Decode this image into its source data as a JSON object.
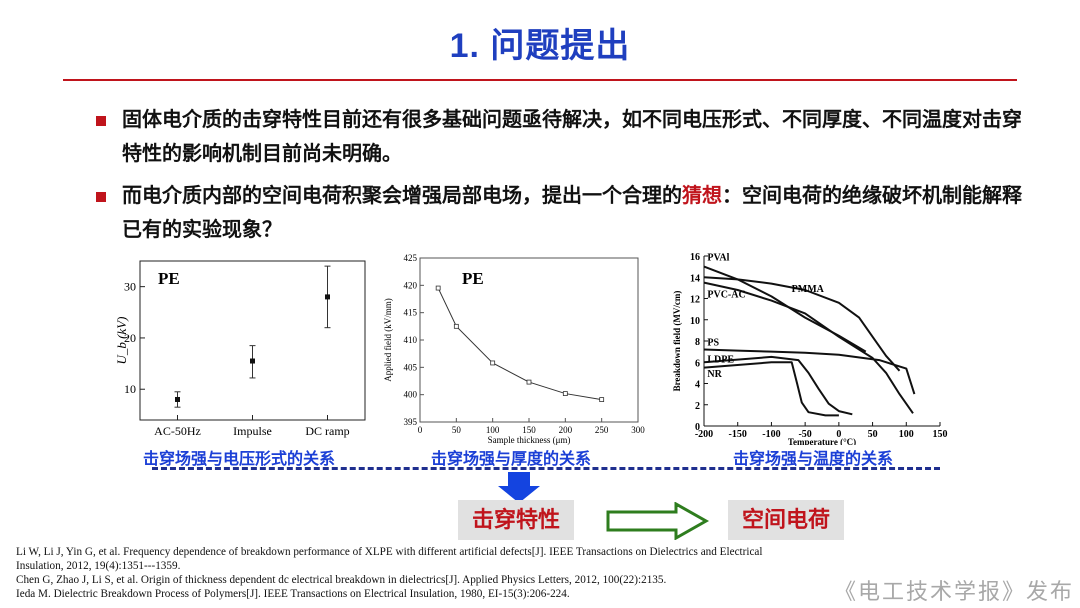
{
  "title": "1. 问题提出",
  "bullets": [
    {
      "text": "固体电介质的击穿特性目前还有很多基础问题亟待解决，如不同电压形式、不同厚度、不同温度对击穿特性的影响机制目前尚未明确。"
    },
    {
      "before": "而电介质内部的空间电荷积聚会增强局部电场，提出一个合理的",
      "highlight": "猜想",
      "after": "：空间电荷的绝缘破坏机制能解释已有的实验现象？"
    }
  ],
  "charts": {
    "voltage": {
      "caption": "击穿场强与电压形式的关系"
    },
    "thickness": {
      "caption": "击穿场强与厚度的关系"
    },
    "temperature": {
      "caption": "击穿场强与温度的关系"
    }
  },
  "flow": {
    "left_box": "击穿特性",
    "right_box": "空间电荷",
    "arrow_down_color": "#1444e0",
    "arrow_right_color": "#2e7d1e"
  },
  "references": [
    "Li W, Li J, Yin G, et al. Frequency dependence of breakdown performance of XLPE with different artificial defects[J]. IEEE Transactions on Dielectrics and Electrical",
    "Insulation, 2012, 19(4):1351---1359.",
    "Chen G, Zhao J, Li S, et al. Origin of thickness dependent dc electrical breakdown in dielectrics[J]. Applied Physics Letters, 2012, 100(22):2135.",
    "Ieda M. Dielectric Breakdown Process of Polymers[J]. IEEE Transactions on Electrical Insulation, 1980, EI-15(3):206-224."
  ],
  "watermark": "《电工技术学报》发布",
  "colors": {
    "title": "#1f3fbf",
    "accent_red": "#c0141c",
    "caption_blue": "#1b3fd6"
  },
  "chart_data": [
    {
      "type": "scatter",
      "title": "PE",
      "ylabel": "U_b (kV)",
      "categories": [
        "AC-50Hz",
        "Impulse",
        "DC ramp"
      ],
      "values": [
        8,
        15.5,
        28
      ],
      "error_low": [
        6.5,
        12.2,
        22
      ],
      "error_high": [
        9.5,
        18.5,
        34
      ],
      "ylim": [
        4,
        35
      ],
      "yticks": [
        10,
        20,
        30
      ]
    },
    {
      "type": "line",
      "title": "PE",
      "xlabel": "Sample thickness (μm)",
      "ylabel": "Applied field (kV/mm)",
      "x": [
        25,
        50,
        100,
        150,
        200,
        250
      ],
      "y": [
        419.5,
        412.5,
        405.8,
        402.3,
        400.2,
        399.1
      ],
      "xlim": [
        0,
        300
      ],
      "ylim": [
        395,
        425
      ],
      "xticks": [
        0,
        50,
        100,
        150,
        200,
        250,
        300
      ],
      "yticks": [
        395,
        400,
        405,
        410,
        415,
        420,
        425
      ]
    },
    {
      "type": "line",
      "xlabel": "Temperature (°C)",
      "ylabel": "Breakdown field (MV/cm)",
      "xlim": [
        -200,
        150
      ],
      "ylim": [
        0,
        16
      ],
      "xticks": [
        -200,
        -150,
        -100,
        -50,
        0,
        50,
        100,
        150
      ],
      "yticks": [
        0,
        2,
        4,
        6,
        8,
        10,
        12,
        14,
        16
      ],
      "series": [
        {
          "name": "PVAl",
          "x": [
            -200,
            -150,
            -100,
            -50,
            0,
            40
          ],
          "y": [
            15,
            13.8,
            12.2,
            10.2,
            8.5,
            7
          ]
        },
        {
          "name": "PMMA",
          "x": [
            -200,
            -150,
            -100,
            -50,
            0,
            30,
            50,
            70,
            90
          ],
          "y": [
            14,
            13.8,
            13.4,
            12.8,
            11.6,
            10.2,
            8.4,
            6.6,
            5.2
          ]
        },
        {
          "name": "PVC-AC",
          "x": [
            -200,
            -150,
            -100,
            -50,
            0,
            50,
            70,
            90,
            110
          ],
          "y": [
            13.5,
            12.8,
            11.8,
            10.6,
            8.4,
            6.4,
            5,
            3,
            1.2
          ]
        },
        {
          "name": "PS",
          "x": [
            -200,
            -150,
            -100,
            -50,
            0,
            60,
            100,
            112
          ],
          "y": [
            7.2,
            7.1,
            7,
            6.9,
            6.7,
            6.2,
            5.4,
            3
          ]
        },
        {
          "name": "LDPE",
          "x": [
            -200,
            -100,
            -60,
            -45,
            -30,
            -15,
            0,
            20
          ],
          "y": [
            6,
            6.5,
            6.2,
            5,
            3.5,
            2.1,
            1.4,
            1.1
          ]
        },
        {
          "name": "NR",
          "x": [
            -200,
            -100,
            -70,
            -62,
            -55,
            -45,
            -20,
            0
          ],
          "y": [
            5.5,
            6,
            6,
            4,
            2.2,
            1.3,
            1,
            1
          ]
        }
      ]
    }
  ]
}
